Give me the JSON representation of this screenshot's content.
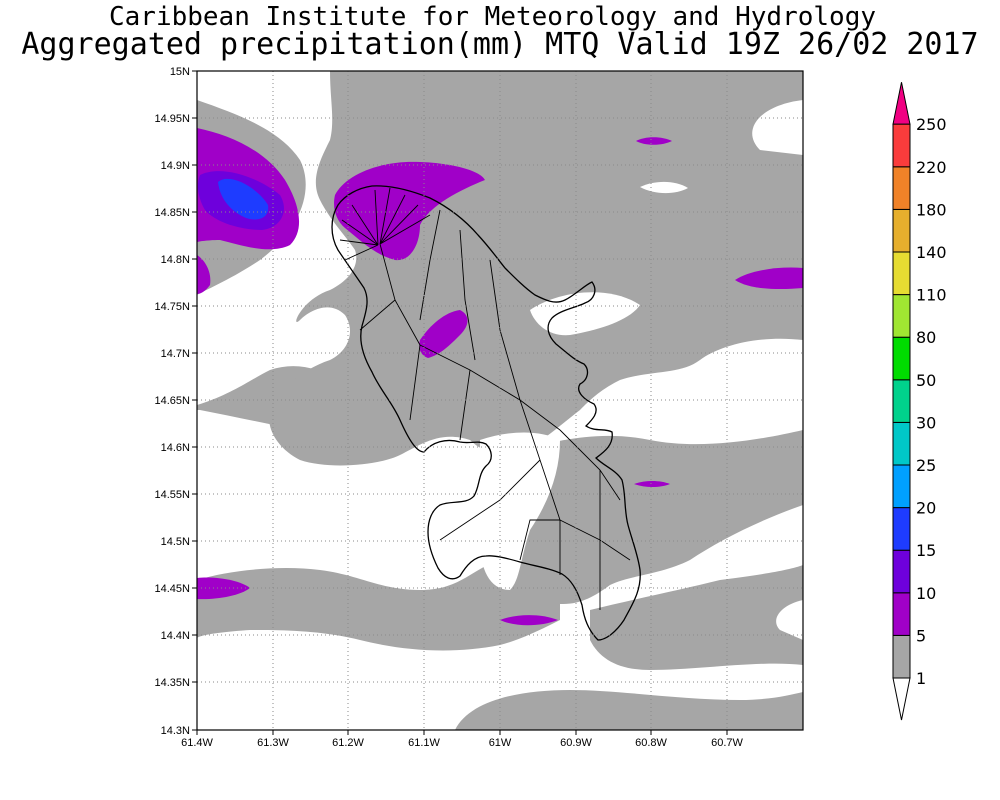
{
  "header": {
    "institute": "Caribbean Institute for Meteorology and Hydrology",
    "product": "Aggregated precipitation(mm) MTQ Valid 19Z 26/02 2017"
  },
  "map": {
    "lat_ticks": [
      "15N",
      "14.95N",
      "14.9N",
      "14.85N",
      "14.8N",
      "14.75N",
      "14.7N",
      "14.65N",
      "14.6N",
      "14.55N",
      "14.5N",
      "14.45N",
      "14.4N",
      "14.35N",
      "14.3N"
    ],
    "lon_ticks": [
      "61.4W",
      "61.3W",
      "61.2W",
      "61.1W",
      "61W",
      "60.9W",
      "60.8W",
      "60.7W"
    ],
    "lat_range": [
      14.3,
      15.0
    ],
    "lon_range": [
      -61.4,
      -60.6
    ],
    "grid": true,
    "land_outline": "Martinique"
  },
  "colorbar": {
    "levels": [
      "1",
      "5",
      "10",
      "15",
      "20",
      "25",
      "30",
      "50",
      "80",
      "110",
      "140",
      "180",
      "220",
      "250"
    ],
    "colors": [
      "#ffffff",
      "#a6a6a6",
      "#a000c8",
      "#6e00dc",
      "#1e3cff",
      "#00a0ff",
      "#00c8c8",
      "#00d28c",
      "#00dc00",
      "#a0e632",
      "#e6dc32",
      "#e6af2d",
      "#f08228",
      "#fa3c3c",
      "#f00082"
    ]
  }
}
